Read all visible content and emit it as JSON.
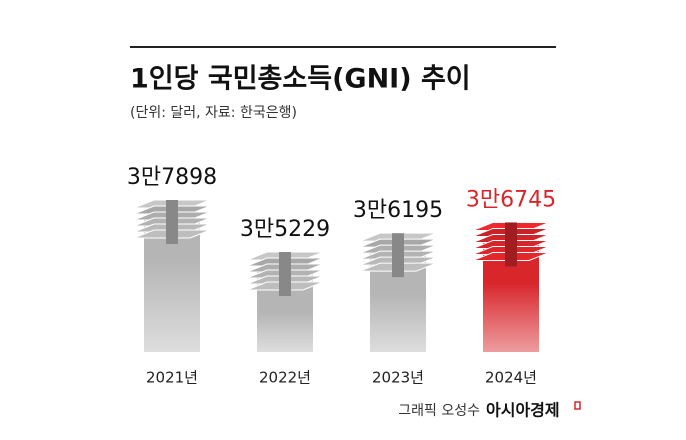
{
  "chart_data": {
    "type": "bar",
    "title": "1인당 국민총소득(GNI) 추이",
    "subtitle": "(단위: 달러, 자료: 한국은행)",
    "categories": [
      "2021년",
      "2022년",
      "2023년",
      "2024년"
    ],
    "values": [
      37898,
      35229,
      36195,
      36745
    ],
    "value_labels": [
      "3만7898",
      "3만5229",
      "3만6195",
      "3만6745"
    ],
    "colors": [
      "#b5b5b5",
      "#b5b5b5",
      "#b5b5b5",
      "#d8262b"
    ],
    "label_colors": [
      "#111111",
      "#111111",
      "#111111",
      "#d8262b"
    ],
    "credit": "그래픽 오성수",
    "brand": "아시아경제"
  }
}
